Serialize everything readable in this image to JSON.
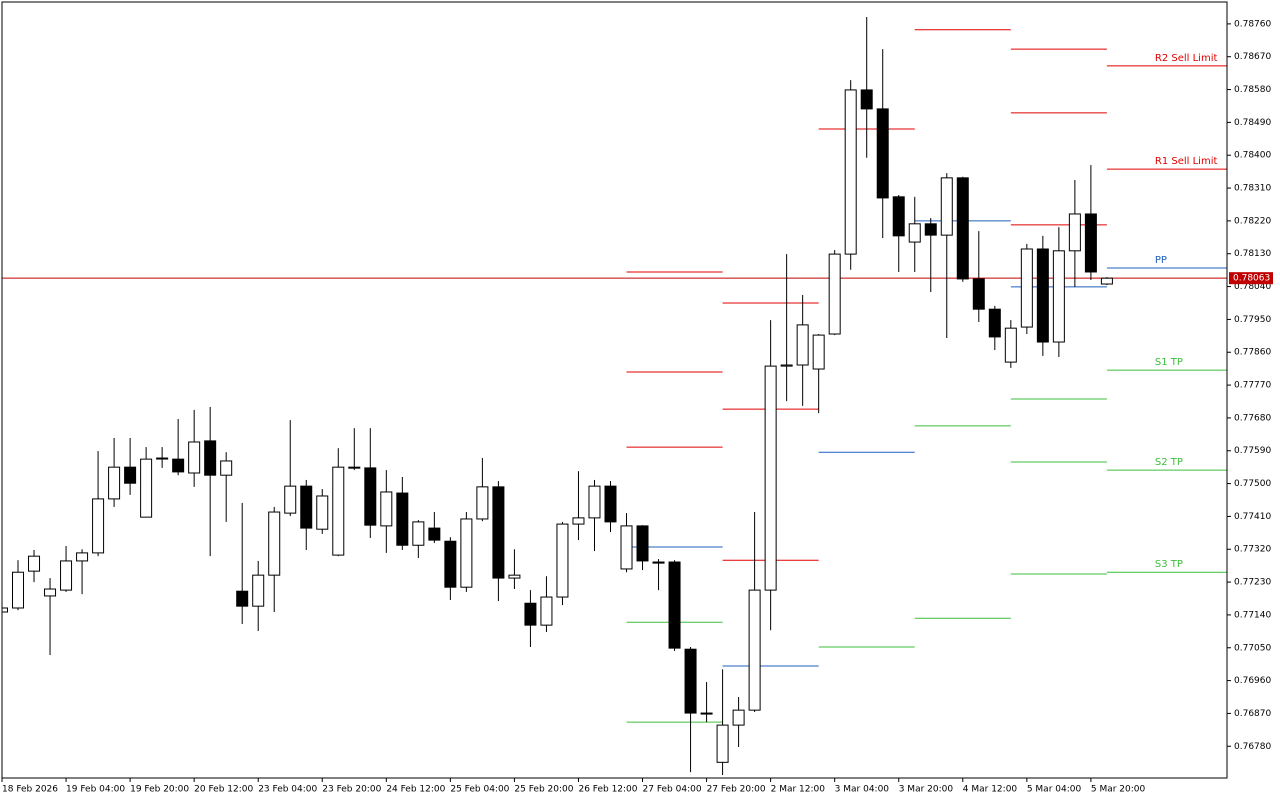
{
  "chart_data": {
    "type": "candlestick",
    "categories": [
      "18 Feb 2026",
      null,
      null,
      null,
      "19 Feb 04:00",
      null,
      null,
      null,
      "19 Feb 20:00",
      null,
      null,
      null,
      "20 Feb 12:00",
      null,
      null,
      null,
      "23 Feb 04:00",
      null,
      null,
      null,
      "23 Feb 20:00",
      null,
      null,
      null,
      "24 Feb 12:00",
      null,
      null,
      null,
      "25 Feb 04:00",
      null,
      null,
      null,
      "25 Feb 20:00",
      null,
      null,
      null,
      "26 Feb 12:00",
      null,
      null,
      null,
      "27 Feb 04:00",
      null,
      null,
      null,
      "27 Feb 20:00",
      null,
      null,
      null,
      "2 Mar 12:00",
      null,
      null,
      null,
      "3 Mar 04:00",
      null,
      null,
      null,
      "3 Mar 20:00",
      null,
      null,
      null,
      "4 Mar 12:00",
      null,
      null,
      null,
      "5 Mar 04:00",
      null,
      null,
      null,
      "5 Mar 20:00",
      null
    ],
    "open": [
      0.77148,
      0.77159,
      0.7726,
      0.77192,
      0.77208,
      0.77288,
      0.7731,
      0.77458,
      0.77545,
      0.77408,
      0.7757,
      0.77567,
      0.77529,
      0.77617,
      0.77523,
      0.77205,
      0.77164,
      0.77249,
      0.77419,
      0.77493,
      0.77375,
      0.77304,
      0.77545,
      0.77543,
      0.77384,
      0.77474,
      0.77331,
      0.77378,
      0.77342,
      0.77216,
      0.77403,
      0.77491,
      0.77241,
      0.77172,
      0.77112,
      0.77189,
      0.77389,
      0.77406,
      0.77493,
      0.77266,
      0.77384,
      0.77285,
      0.77285,
      0.77046,
      0.76871,
      0.76736,
      0.76838,
      0.76879,
      0.77208,
      0.77822,
      0.77825,
      0.77814,
      0.7791,
      0.78129,
      0.78579,
      0.78527,
      0.78286,
      0.78162,
      0.78212,
      0.78181,
      0.78338,
      0.78061,
      0.77978,
      0.77833,
      0.77929,
      0.78143,
      0.77888,
      0.78138,
      0.78239,
      0.78047
    ],
    "high": [
      0.7717,
      0.7729,
      0.77318,
      0.77241,
      0.77329,
      0.7732,
      0.77589,
      0.77625,
      0.77625,
      0.776,
      0.776,
      0.77677,
      0.77702,
      0.7771,
      0.77586,
      0.77447,
      0.77288,
      0.77436,
      0.77674,
      0.7751,
      0.77485,
      0.77597,
      0.77652,
      0.77652,
      0.77537,
      0.77518,
      0.774,
      0.77422,
      0.77353,
      0.77422,
      0.7757,
      0.77507,
      0.7732,
      0.77208,
      0.77246,
      0.77395,
      0.77534,
      0.7751,
      0.77507,
      0.77419,
      0.77386,
      0.77293,
      0.7729,
      0.77052,
      0.76956,
      0.76991,
      0.76915,
      0.77422,
      0.77948,
      0.78129,
      0.78017,
      0.7791,
      0.7814,
      0.78606,
      0.78779,
      0.78691,
      0.78291,
      0.78286,
      0.78228,
      0.78351,
      0.78341,
      0.78192,
      0.77987,
      0.77948,
      0.78157,
      0.78179,
      0.78203,
      0.78332,
      0.78373,
      0.78066
    ],
    "low": [
      0.7714,
      0.77153,
      0.7723,
      0.7703,
      0.77203,
      0.77197,
      0.77301,
      0.77436,
      0.77469,
      0.77408,
      0.77543,
      0.77523,
      0.77491,
      0.77301,
      0.77395,
      0.77115,
      0.77096,
      0.77148,
      0.77411,
      0.77318,
      0.77362,
      0.77301,
      0.77537,
      0.77351,
      0.7731,
      0.77318,
      0.77296,
      0.77337,
      0.77181,
      0.77203,
      0.77397,
      0.77178,
      0.77211,
      0.77052,
      0.77093,
      0.77167,
      0.77345,
      0.77315,
      0.77367,
      0.77257,
      0.77263,
      0.77208,
      0.77041,
      0.76709,
      0.76846,
      0.76701,
      0.76778,
      0.76874,
      0.77098,
      0.77726,
      0.77713,
      0.77693,
      0.77907,
      0.78086,
      0.78393,
      0.78173,
      0.7808,
      0.7808,
      0.78025,
      0.77899,
      0.78053,
      0.77943,
      0.77866,
      0.77817,
      0.7791,
      0.7785,
      0.77847,
      0.78039,
      0.78058,
      0.78044
    ],
    "close": [
      0.77159,
      0.77257,
      0.77301,
      0.77211,
      0.77288,
      0.7731,
      0.77458,
      0.77545,
      0.77501,
      0.77567,
      0.77569,
      0.77532,
      0.77614,
      0.77523,
      0.77562,
      0.77164,
      0.77249,
      0.77422,
      0.77493,
      0.77378,
      0.77466,
      0.77545,
      0.77543,
      0.77386,
      0.77477,
      0.77331,
      0.77395,
      0.77345,
      0.77216,
      0.77403,
      0.77491,
      0.77241,
      0.77249,
      0.77112,
      0.77189,
      0.77389,
      0.77406,
      0.77493,
      0.77395,
      0.77384,
      0.77288,
      0.77282,
      0.77049,
      0.76871,
      0.76869,
      0.76838,
      0.76879,
      0.77208,
      0.77822,
      0.77825,
      0.77935,
      0.77907,
      0.78129,
      0.78579,
      0.78527,
      0.78283,
      0.78179,
      0.78212,
      0.78181,
      0.78338,
      0.78061,
      0.77978,
      0.77902,
      0.77926,
      0.78143,
      0.77888,
      0.78138,
      0.78239,
      0.7808,
      0.78063
    ],
    "up_color": "#ffffff",
    "down_color": "#000000",
    "xlim": [
      0,
      76.5
    ],
    "ylim": [
      0.76693,
      0.7882
    ],
    "yticks": [
      {
        "value": 0.7876,
        "label": "0.78760"
      },
      {
        "value": 0.7867,
        "label": "0.78670"
      },
      {
        "value": 0.7858,
        "label": "0.78580"
      },
      {
        "value": 0.7849,
        "label": "0.78490"
      },
      {
        "value": 0.784,
        "label": "0.78400"
      },
      {
        "value": 0.7831,
        "label": "0.78310"
      },
      {
        "value": 0.7822,
        "label": "0.78220"
      },
      {
        "value": 0.7813,
        "label": "0.78130"
      },
      {
        "value": 0.7804,
        "label": "0.78040"
      },
      {
        "value": 0.7795,
        "label": "0.77950"
      },
      {
        "value": 0.7786,
        "label": "0.77860"
      },
      {
        "value": 0.7777,
        "label": "0.77770"
      },
      {
        "value": 0.7768,
        "label": "0.77680"
      },
      {
        "value": 0.7759,
        "label": "0.77590"
      },
      {
        "value": 0.775,
        "label": "0.77500"
      },
      {
        "value": 0.7741,
        "label": "0.77410"
      },
      {
        "value": 0.7732,
        "label": "0.77320"
      },
      {
        "value": 0.7723,
        "label": "0.77230"
      },
      {
        "value": 0.7714,
        "label": "0.77140"
      },
      {
        "value": 0.7705,
        "label": "0.77050"
      },
      {
        "value": 0.7696,
        "label": "0.76960"
      },
      {
        "value": 0.7687,
        "label": "0.76870"
      },
      {
        "value": 0.7678,
        "label": "0.76780"
      }
    ],
    "current_price": {
      "value": 0.78063,
      "label": "0.78063",
      "color": "#c00000"
    },
    "pivots": [
      {
        "x": [
          39,
          45
        ],
        "levels": [
          {
            "value": 0.7808,
            "color": "#e00000"
          },
          {
            "value": 0.77806,
            "color": "#e00000"
          },
          {
            "value": 0.776,
            "color": "#e00000"
          },
          {
            "value": 0.77326,
            "color": "#1f5fbf"
          },
          {
            "value": 0.7712,
            "color": "#3cbf3c"
          },
          {
            "value": 0.76846,
            "color": "#3cbf3c"
          }
        ]
      },
      {
        "x": [
          45,
          51
        ],
        "levels": [
          {
            "value": 0.77995,
            "color": "#e00000"
          },
          {
            "value": 0.77704,
            "color": "#e00000"
          },
          {
            "value": 0.7729,
            "color": "#e00000"
          },
          {
            "value": 0.77,
            "color": "#1f5fbf"
          }
        ]
      },
      {
        "x": [
          51,
          57
        ],
        "levels": [
          {
            "value": 0.78472,
            "color": "#e00000"
          },
          {
            "value": 0.77586,
            "color": "#1f5fbf"
          },
          {
            "value": 0.77052,
            "color": "#3cbf3c"
          }
        ]
      },
      {
        "x": [
          57,
          63
        ],
        "levels": [
          {
            "value": 0.78744,
            "color": "#e00000"
          },
          {
            "value": 0.7822,
            "color": "#1f5fbf"
          },
          {
            "value": 0.77658,
            "color": "#3cbf3c"
          },
          {
            "value": 0.77131,
            "color": "#3cbf3c"
          }
        ]
      },
      {
        "x": [
          63,
          69
        ],
        "levels": [
          {
            "value": 0.78691,
            "color": "#e00000"
          },
          {
            "value": 0.78516,
            "color": "#e00000"
          },
          {
            "value": 0.78209,
            "color": "#e00000"
          },
          {
            "value": 0.78039,
            "color": "#1f5fbf"
          },
          {
            "value": 0.77732,
            "color": "#3cbf3c"
          },
          {
            "value": 0.77559,
            "color": "#3cbf3c"
          },
          {
            "value": 0.77252,
            "color": "#3cbf3c"
          }
        ]
      },
      {
        "x": [
          69,
          76.5
        ],
        "levels": [
          {
            "name": "R2 Sell Limit",
            "value": 0.78645,
            "color": "#e00000"
          },
          {
            "name": "R1 Sell Limit",
            "value": 0.78362,
            "color": "#e00000"
          },
          {
            "name": "PP",
            "value": 0.78091,
            "color": "#1f5fbf"
          },
          {
            "name": "S1 TP",
            "value": 0.77811,
            "color": "#3cbf3c"
          },
          {
            "name": "S2 TP",
            "value": 0.77537,
            "color": "#3cbf3c"
          },
          {
            "name": "S3 TP",
            "value": 0.77257,
            "color": "#3cbf3c"
          }
        ]
      }
    ]
  }
}
